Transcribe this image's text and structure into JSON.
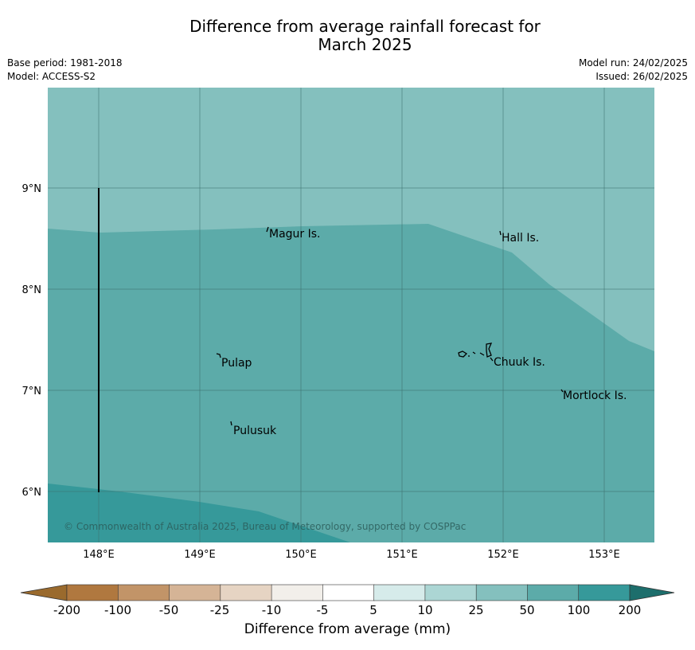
{
  "header": {
    "title_line1": "Difference from average rainfall forecast for",
    "title_line2": "March 2025",
    "base_period": "Base period: 1981-2018",
    "model": "Model: ACCESS-S2",
    "model_run": "Model run: 24/02/2025",
    "issued": "Issued: 26/02/2025"
  },
  "map": {
    "lat_ticks": [
      "9°N",
      "8°N",
      "7°N",
      "6°N"
    ],
    "lon_ticks": [
      "148°E",
      "149°E",
      "150°E",
      "151°E",
      "152°E",
      "153°E"
    ],
    "places": [
      "Magur Is.",
      "Hall Is.",
      "Pulap",
      "Chuuk Is.",
      "Mortlock Is.",
      "Pulusuk"
    ],
    "copyright": "© Commonwealth of Australia 2025, Bureau of Meteorology, supported by COSPPac",
    "colors": {
      "band_10_25": "#84c0be",
      "band_25_50": "#5caba9",
      "band_50_100": "#36999a"
    }
  },
  "colorbar": {
    "ticks": [
      "-200",
      "-100",
      "-50",
      "-25",
      "-10",
      "-5",
      "5",
      "10",
      "25",
      "50",
      "100",
      "200"
    ],
    "label": "Difference from average (mm)",
    "colors": [
      "#9a6a2d",
      "#b0783f",
      "#c29468",
      "#d5b496",
      "#e6d4c3",
      "#f2efea",
      "#ffffff",
      "#d6ebea",
      "#acd6d4",
      "#84c0be",
      "#5caba9",
      "#36999a",
      "#1d6e6c"
    ]
  }
}
